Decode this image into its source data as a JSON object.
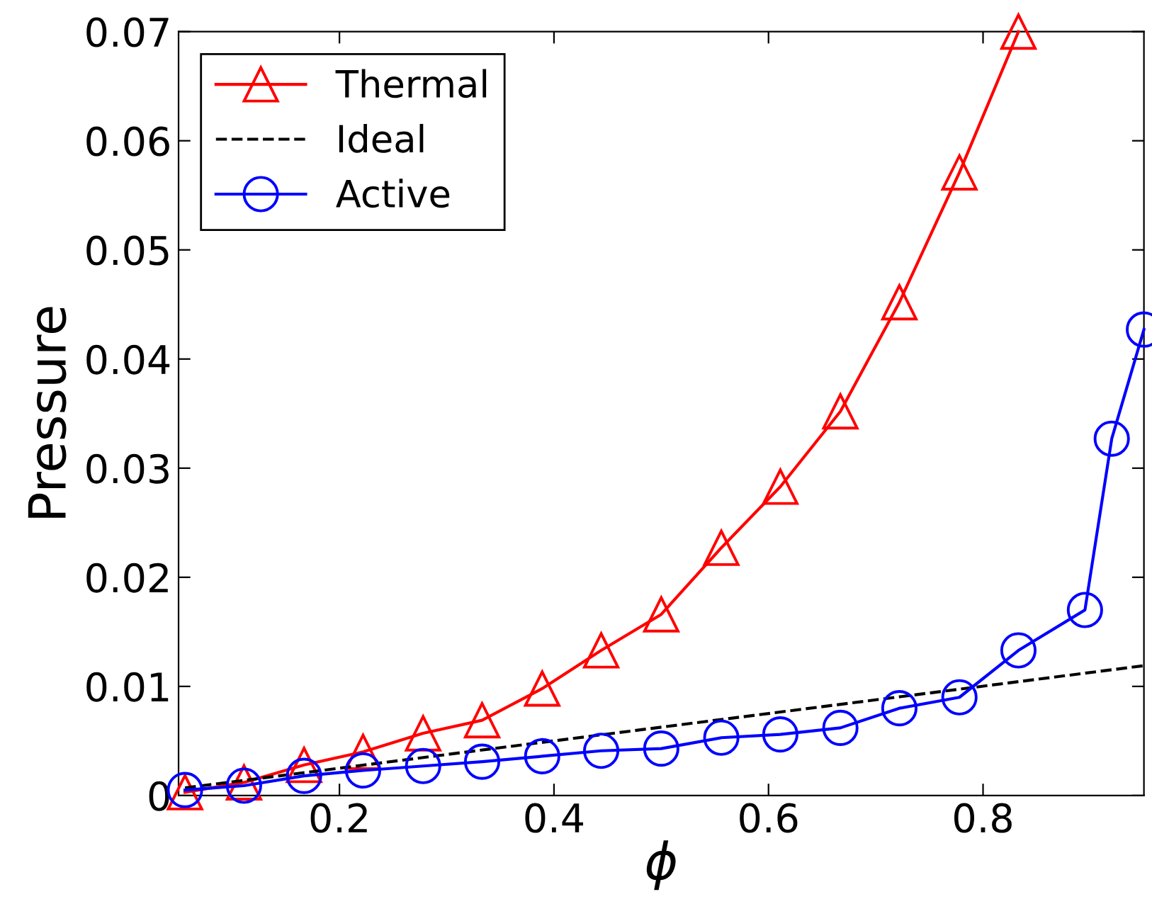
{
  "chart_data": {
    "type": "line",
    "xlabel": "ϕ",
    "ylabel": "Pressure",
    "xlim": [
      0.05,
      0.95
    ],
    "ylim": [
      0,
      0.07
    ],
    "xticks": [
      0.2,
      0.4,
      0.6,
      0.8
    ],
    "yticks": [
      0,
      0.01,
      0.02,
      0.03,
      0.04,
      0.05,
      0.06,
      0.07
    ],
    "grid": false,
    "legend": "top left",
    "series": [
      {
        "name": "Thermal",
        "color": "#ff0000",
        "marker": "triangle",
        "line_style": "solid",
        "x": [
          0.056,
          0.111,
          0.167,
          0.222,
          0.278,
          0.333,
          0.389,
          0.444,
          0.5,
          0.556,
          0.611,
          0.667,
          0.722,
          0.778,
          0.833
        ],
        "values": [
          0.0003,
          0.0012,
          0.0028,
          0.004,
          0.0057,
          0.0069,
          0.0098,
          0.0133,
          0.0166,
          0.0227,
          0.0283,
          0.0352,
          0.0452,
          0.0571,
          0.07
        ]
      },
      {
        "name": "Ideal",
        "color": "#000000",
        "marker": "none",
        "line_style": "dashed",
        "x": [
          0.056,
          0.95
        ],
        "values": [
          0.0007,
          0.0119
        ]
      },
      {
        "name": "Active",
        "color": "#0000ff",
        "marker": "circle",
        "line_style": "solid",
        "x": [
          0.056,
          0.111,
          0.167,
          0.222,
          0.278,
          0.333,
          0.389,
          0.444,
          0.5,
          0.556,
          0.611,
          0.667,
          0.722,
          0.778,
          0.833,
          0.895,
          0.92,
          0.95
        ],
        "values": [
          0.0005,
          0.0009,
          0.0018,
          0.0023,
          0.0027,
          0.0031,
          0.0036,
          0.0041,
          0.0043,
          0.0053,
          0.0056,
          0.0062,
          0.008,
          0.009,
          0.0133,
          0.017,
          0.0327,
          0.0427
        ]
      }
    ]
  }
}
